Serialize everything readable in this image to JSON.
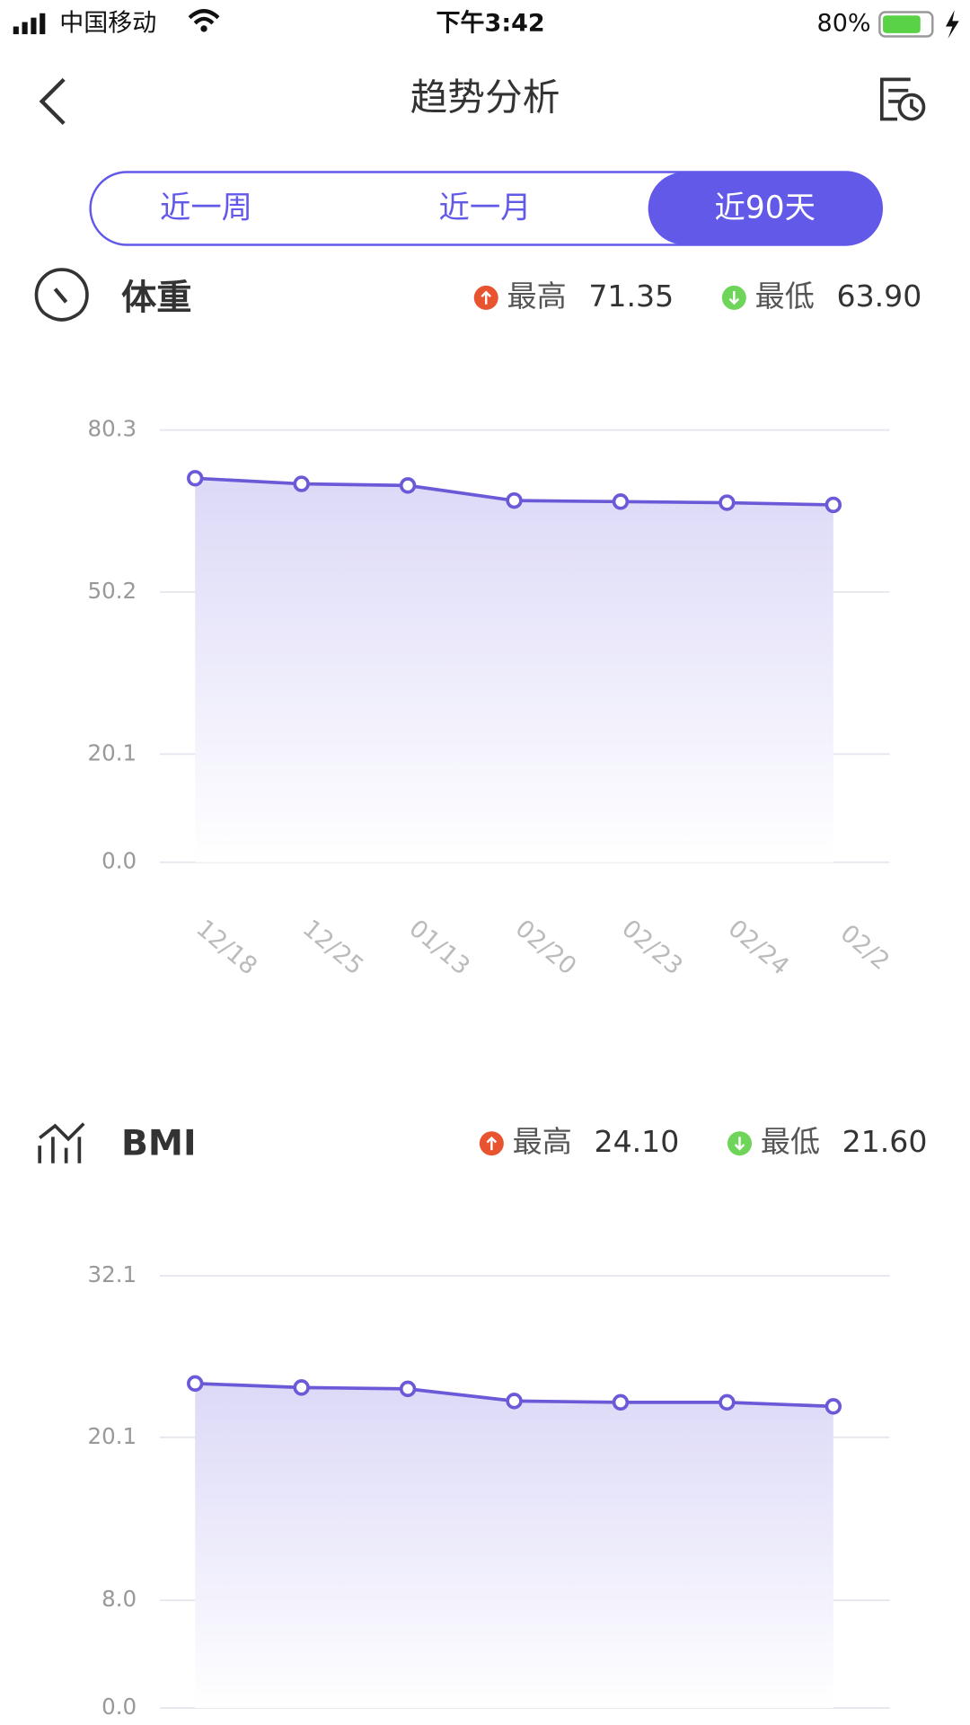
{
  "status_bar": {
    "carrier": "中国移动",
    "time": "下午3:42",
    "battery": "80%"
  },
  "header": {
    "title": "趋势分析"
  },
  "tabs": {
    "items": [
      "近一周",
      "近一月",
      "近90天"
    ],
    "selected": 2
  },
  "chart_data": [
    {
      "type": "line",
      "title": "体重",
      "stats": {
        "max_label": "最高",
        "max": "71.35",
        "min_label": "最低",
        "min": "63.90"
      },
      "categories": [
        "12/18",
        "12/25",
        "01/13",
        "02/20",
        "02/23",
        "02/24",
        "02/2"
      ],
      "values": [
        71.35,
        70.3,
        70.0,
        67.2,
        67.0,
        66.8,
        66.4
      ],
      "color": "#6a5ad8",
      "ylim": [
        0,
        80.3
      ],
      "yticks": [
        {
          "value": 0,
          "label": "0.0"
        },
        20.1,
        50.2,
        80.3
      ],
      "grid": true
    },
    {
      "type": "line",
      "title": "BMI",
      "stats": {
        "max_label": "最高",
        "max": "24.10",
        "min_label": "最低",
        "min": "21.60"
      },
      "categories": [
        null,
        null,
        null,
        null,
        null,
        null,
        null
      ],
      "values": [
        24.1,
        23.8,
        23.7,
        22.8,
        22.7,
        22.7,
        22.4
      ],
      "color": "#6a5ad8",
      "ylim": [
        0,
        32.1
      ],
      "yticks": [
        {
          "value": 0,
          "label": "0.0"
        },
        {
          "value": 8,
          "label": "8.0"
        },
        20.1,
        32.1
      ],
      "grid": true
    }
  ]
}
